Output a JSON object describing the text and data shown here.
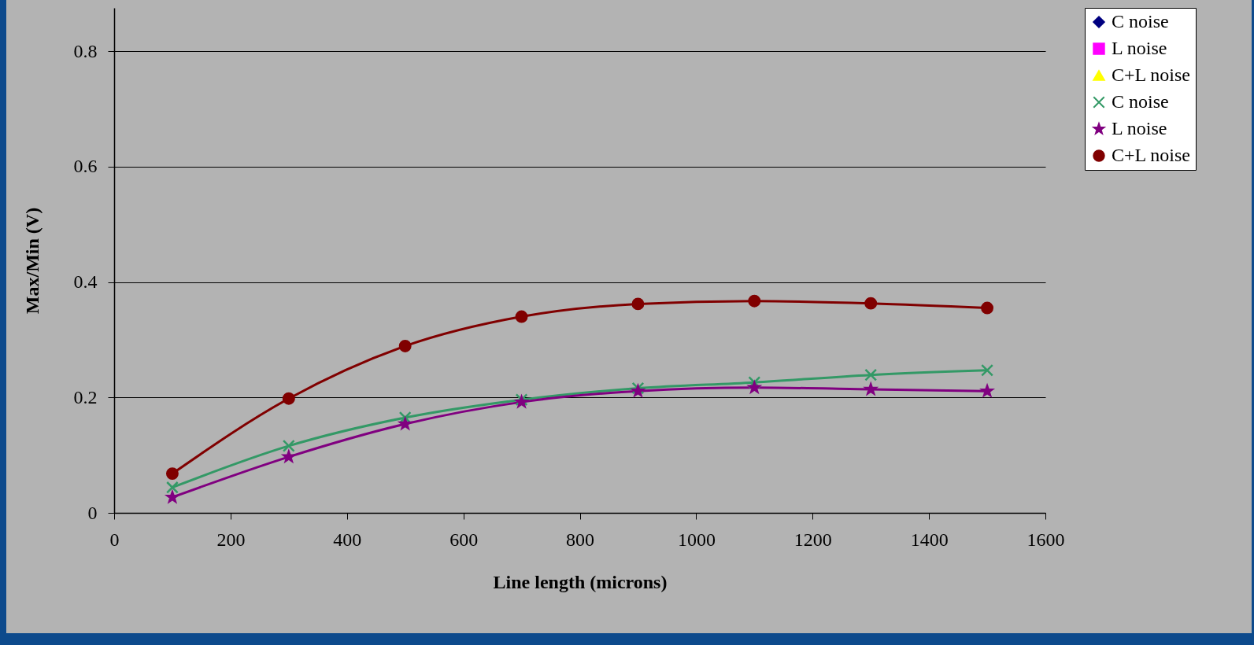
{
  "chart_data": {
    "type": "line",
    "xlabel": "Line length (microns)",
    "ylabel": "Max/Min (V)",
    "x": [
      100,
      300,
      500,
      700,
      900,
      1100,
      1300,
      1500
    ],
    "xlim": [
      0,
      1600
    ],
    "xticks": [
      0,
      200,
      400,
      600,
      800,
      1000,
      1200,
      1400,
      1600
    ],
    "ylim": [
      0,
      0.875
    ],
    "yticks": [
      0,
      0.2,
      0.4,
      0.6,
      0.8
    ],
    "grid": "y",
    "legend": "top right",
    "line_style": "solid",
    "series": [
      {
        "name": "C noise",
        "color": "#000080",
        "marker": "diamond",
        "values": [
          null,
          null,
          null,
          null,
          null,
          null,
          null,
          null
        ]
      },
      {
        "name": "L noise",
        "color": "#ff00ff",
        "marker": "square",
        "values": [
          null,
          null,
          null,
          null,
          null,
          null,
          null,
          null
        ]
      },
      {
        "name": "C+L noise",
        "color": "#ffff00",
        "marker": "triangle",
        "values": [
          null,
          null,
          null,
          null,
          null,
          null,
          null,
          null
        ]
      },
      {
        "name": "C noise",
        "color": "#339966",
        "marker": "cross",
        "values": [
          0.044,
          0.116,
          0.165,
          0.196,
          0.216,
          0.226,
          0.239,
          0.247
        ]
      },
      {
        "name": "L noise",
        "color": "#800080",
        "marker": "star",
        "values": [
          0.027,
          0.097,
          0.154,
          0.192,
          0.211,
          0.217,
          0.214,
          0.211
        ]
      },
      {
        "name": "C+L noise",
        "color": "#800000",
        "marker": "circle",
        "values": [
          0.068,
          0.198,
          0.289,
          0.34,
          0.362,
          0.367,
          0.363,
          0.355
        ]
      }
    ]
  }
}
